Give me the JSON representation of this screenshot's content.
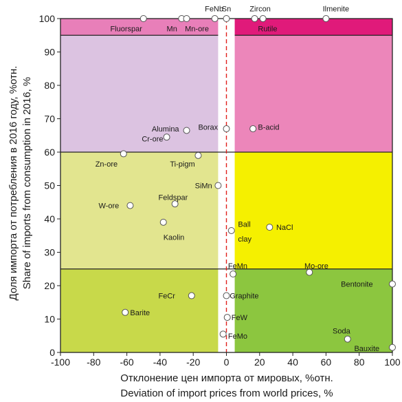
{
  "chart_data": {
    "type": "scatter",
    "xlabel_ru": "Отклонение цен импорта от мировых, %отн.",
    "xlabel_en": "Deviation of import prices from world prices, %",
    "ylabel_ru": "Доля импорта от потребления в 2016 году, %отн.",
    "ylabel_en": "Share of imports from consumption in 2016, %",
    "xlim": [
      -100,
      100
    ],
    "ylim": [
      0,
      100
    ],
    "x_ticks": [
      -100,
      -80,
      -60,
      -40,
      -20,
      0,
      20,
      40,
      60,
      80,
      100
    ],
    "y_ticks": [
      0,
      10,
      20,
      30,
      40,
      50,
      60,
      70,
      80,
      90,
      100
    ],
    "regions": [
      {
        "x": [
          -100,
          -5
        ],
        "y": [
          95,
          100
        ],
        "color": "#e87fb9"
      },
      {
        "x": [
          5,
          100
        ],
        "y": [
          95,
          100
        ],
        "color": "#e01a7a"
      },
      {
        "x": [
          -100,
          -5
        ],
        "y": [
          60,
          95
        ],
        "color": "#dcc3e1"
      },
      {
        "x": [
          5,
          100
        ],
        "y": [
          60,
          95
        ],
        "color": "#ec86ba"
      },
      {
        "x": [
          -100,
          -5
        ],
        "y": [
          25,
          60
        ],
        "color": "#e2e58f"
      },
      {
        "x": [
          5,
          100
        ],
        "y": [
          25,
          60
        ],
        "color": "#f5f000"
      },
      {
        "x": [
          -100,
          -5
        ],
        "y": [
          0,
          25
        ],
        "color": "#c8d94a"
      },
      {
        "x": [
          5,
          100
        ],
        "y": [
          0,
          25
        ],
        "color": "#8cc63f"
      }
    ],
    "points": [
      {
        "name": "Fluorspar",
        "x": -50,
        "y": 100,
        "lx": -70,
        "ly": 97,
        "anchor": "start"
      },
      {
        "name": "Mn",
        "x": -27,
        "y": 100,
        "lx": -36,
        "ly": 97,
        "anchor": "start"
      },
      {
        "name": "Mn-ore",
        "x": -24,
        "y": 100,
        "lx": -25,
        "ly": 97,
        "anchor": "start"
      },
      {
        "name": "FeNb",
        "x": -7,
        "y": 100,
        "lx": -13,
        "ly": 103,
        "anchor": "start"
      },
      {
        "name": "Sn",
        "x": 0,
        "y": 100,
        "lx": 0,
        "ly": 103,
        "anchor": "middle"
      },
      {
        "name": "Zircon",
        "x": 17,
        "y": 100,
        "lx": 14,
        "ly": 103,
        "anchor": "start"
      },
      {
        "name": "Rutile",
        "x": 22,
        "y": 100,
        "lx": 19,
        "ly": 97,
        "anchor": "start"
      },
      {
        "name": "Ilmenite",
        "x": 60,
        "y": 100,
        "lx": 58,
        "ly": 103,
        "anchor": "start"
      },
      {
        "name": "Alumina",
        "x": -24,
        "y": 66.5,
        "lx": -45,
        "ly": 67,
        "anchor": "start"
      },
      {
        "name": "Cr-ore",
        "x": -36,
        "y": 64.5,
        "lx": -51,
        "ly": 64,
        "anchor": "start"
      },
      {
        "name": "Borax",
        "x": 0,
        "y": 67,
        "lx": -17,
        "ly": 67.5,
        "anchor": "start"
      },
      {
        "name": "B-acid",
        "x": 16,
        "y": 67,
        "lx": 19,
        "ly": 67.5,
        "anchor": "start"
      },
      {
        "name": "Zn-ore",
        "x": -62,
        "y": 59.5,
        "lx": -79,
        "ly": 56.5,
        "anchor": "start"
      },
      {
        "name": "Ti-pigm",
        "x": -17,
        "y": 59,
        "lx": -34,
        "ly": 56.5,
        "anchor": "start"
      },
      {
        "name": "SiMn",
        "x": -5,
        "y": 50,
        "lx": -19,
        "ly": 50,
        "anchor": "start"
      },
      {
        "name": "Feldspar",
        "x": -31,
        "y": 44.5,
        "lx": -41,
        "ly": 46.5,
        "anchor": "start"
      },
      {
        "name": "W-ore",
        "x": -58,
        "y": 44,
        "lx": -77,
        "ly": 44,
        "anchor": "start"
      },
      {
        "name": "Kaolin",
        "x": -38,
        "y": 39,
        "lx": -38,
        "ly": 34.5,
        "anchor": "start"
      },
      {
        "name": "Ball",
        "x": 3,
        "y": 36.5,
        "lx": 7,
        "ly": 38.5,
        "anchor": "start"
      },
      {
        "name": "clay",
        "x": null,
        "y": null,
        "lx": 7,
        "ly": 34,
        "anchor": "start"
      },
      {
        "name": "NaCl",
        "x": 26,
        "y": 37.5,
        "lx": 30,
        "ly": 37.5,
        "anchor": "start"
      },
      {
        "name": "FeMn",
        "x": 4,
        "y": 23.5,
        "lx": 1,
        "ly": 26,
        "anchor": "start"
      },
      {
        "name": "Mo-ore",
        "x": 50,
        "y": 24,
        "lx": 47,
        "ly": 26,
        "anchor": "start"
      },
      {
        "name": "Bentonite",
        "x": 100,
        "y": 20.5,
        "lx": 69,
        "ly": 20.5,
        "anchor": "start"
      },
      {
        "name": "FeCr",
        "x": -21,
        "y": 17,
        "lx": -41,
        "ly": 17,
        "anchor": "start"
      },
      {
        "name": "Graphite",
        "x": 0,
        "y": 17,
        "lx": 2,
        "ly": 17,
        "anchor": "start"
      },
      {
        "name": "Barite",
        "x": -61,
        "y": 12,
        "lx": -58,
        "ly": 12,
        "anchor": "start"
      },
      {
        "name": "FeW",
        "x": 0.5,
        "y": 10.5,
        "lx": 3,
        "ly": 10.5,
        "anchor": "start"
      },
      {
        "name": "Soda",
        "x": 73,
        "y": 4,
        "lx": 64,
        "ly": 6.5,
        "anchor": "start"
      },
      {
        "name": "FeMo",
        "x": -2,
        "y": 5.5,
        "lx": 1,
        "ly": 5,
        "anchor": "start"
      },
      {
        "name": "Bauxite",
        "x": 100,
        "y": 1.5,
        "lx": 77,
        "ly": 1.2,
        "anchor": "start"
      }
    ]
  }
}
